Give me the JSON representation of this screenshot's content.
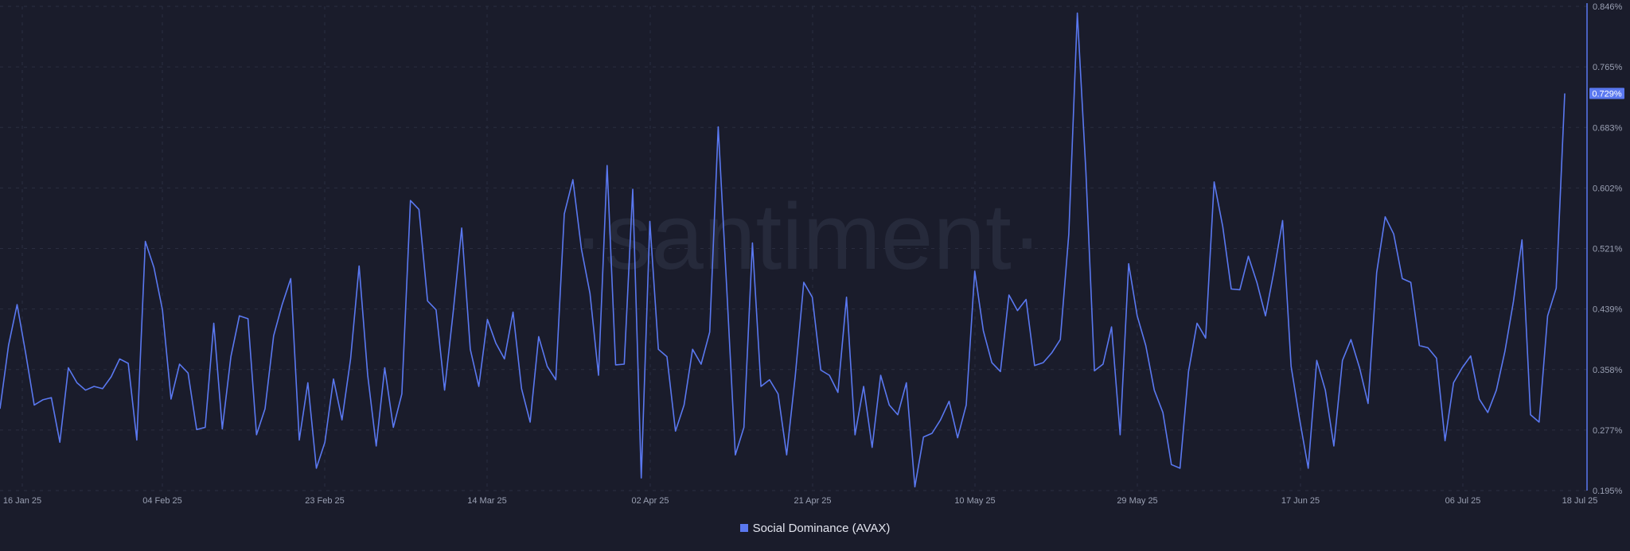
{
  "watermark": "·santiment·",
  "colors": {
    "background": "#1a1c2b",
    "line": "#5a78f0",
    "grid": "#2a2e40",
    "axis_text": "#9aa0b3",
    "badge_bg": "#5a78f0",
    "badge_text": "#ffffff"
  },
  "legend": {
    "label": "Social Dominance (AVAX)"
  },
  "chart_data": {
    "type": "line",
    "title": "",
    "xlabel": "",
    "ylabel": "",
    "y_axis_position": "right",
    "ylim": [
      0.195,
      0.846
    ],
    "y_ticks": [
      "0.846%",
      "0.765%",
      "0.683%",
      "0.602%",
      "0.521%",
      "0.439%",
      "0.358%",
      "0.277%",
      "0.195%"
    ],
    "x_ticks": [
      "16 Jan 25",
      "04 Feb 25",
      "23 Feb 25",
      "14 Mar 25",
      "02 Apr 25",
      "21 Apr 25",
      "10 May 25",
      "29 May 25",
      "17 Jun 25",
      "06 Jul 25",
      "18 Jul 25"
    ],
    "grid": true,
    "legend_position": "bottom-center",
    "last_value_label": "0.729%",
    "series": [
      {
        "name": "Social Dominance (AVAX)",
        "values": [
          0.305,
          0.39,
          0.445,
          0.38,
          0.31,
          0.317,
          0.32,
          0.26,
          0.36,
          0.34,
          0.33,
          0.335,
          0.332,
          0.348,
          0.372,
          0.366,
          0.263,
          0.53,
          0.495,
          0.438,
          0.318,
          0.365,
          0.353,
          0.277,
          0.28,
          0.42,
          0.278,
          0.375,
          0.43,
          0.426,
          0.27,
          0.305,
          0.403,
          0.445,
          0.48,
          0.263,
          0.34,
          0.225,
          0.26,
          0.345,
          0.29,
          0.372,
          0.497,
          0.35,
          0.255,
          0.36,
          0.28,
          0.325,
          0.585,
          0.573,
          0.45,
          0.438,
          0.33,
          0.435,
          0.548,
          0.385,
          0.335,
          0.425,
          0.393,
          0.372,
          0.435,
          0.332,
          0.287,
          0.402,
          0.362,
          0.344,
          0.567,
          0.613,
          0.52,
          0.46,
          0.35,
          0.632,
          0.364,
          0.365,
          0.6,
          0.212,
          0.557,
          0.385,
          0.375,
          0.275,
          0.31,
          0.385,
          0.365,
          0.408,
          0.684,
          0.465,
          0.243,
          0.28,
          0.528,
          0.335,
          0.344,
          0.325,
          0.243,
          0.348,
          0.475,
          0.455,
          0.357,
          0.35,
          0.327,
          0.455,
          0.27,
          0.335,
          0.253,
          0.35,
          0.31,
          0.297,
          0.34,
          0.2,
          0.267,
          0.272,
          0.29,
          0.315,
          0.266,
          0.31,
          0.49,
          0.41,
          0.367,
          0.355,
          0.458,
          0.437,
          0.452,
          0.363,
          0.367,
          0.38,
          0.398,
          0.54,
          0.837,
          0.623,
          0.356,
          0.365,
          0.415,
          0.27,
          0.5,
          0.43,
          0.39,
          0.33,
          0.3,
          0.23,
          0.225,
          0.355,
          0.42,
          0.4,
          0.61,
          0.55,
          0.466,
          0.465,
          0.51,
          0.475,
          0.43,
          0.49,
          0.558,
          0.362,
          0.29,
          0.225,
          0.37,
          0.33,
          0.255,
          0.37,
          0.398,
          0.36,
          0.312,
          0.488,
          0.563,
          0.54,
          0.48,
          0.475,
          0.39,
          0.387,
          0.373,
          0.262,
          0.34,
          0.36,
          0.376,
          0.318,
          0.3,
          0.33,
          0.382,
          0.449,
          0.532,
          0.297,
          0.287,
          0.43,
          0.467,
          0.729
        ]
      }
    ]
  }
}
